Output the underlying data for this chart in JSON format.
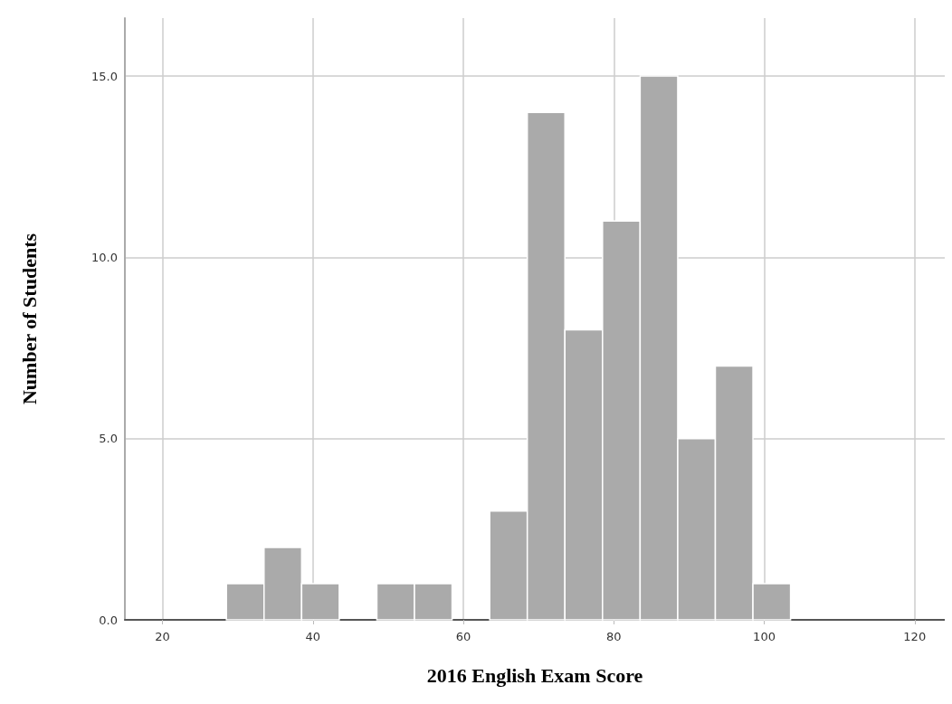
{
  "chart_data": {
    "type": "histogram",
    "xlabel": "2016 English Exam Score",
    "ylabel": "Number of Students",
    "bins": [
      28.5,
      33.5,
      38.5,
      43.5,
      48.5,
      53.5,
      58.5,
      63.5,
      68.5,
      73.5,
      78.5,
      83.5,
      88.5,
      93.5,
      98.5,
      103.5
    ],
    "values": [
      1,
      2,
      1,
      0,
      1,
      1,
      0,
      3,
      14,
      8,
      11,
      15,
      5,
      7,
      1
    ],
    "color": "#aaaaaa",
    "xlim": [
      15,
      124
    ],
    "xticks": [
      20,
      40,
      60,
      80,
      100,
      120
    ],
    "ylim": [
      0,
      16.6
    ],
    "yticks": [
      {
        "value": 0,
        "label": "0.0"
      },
      {
        "value": 5,
        "label": "5.0"
      },
      {
        "value": 10,
        "label": "10.0"
      },
      {
        "value": 15,
        "label": "15.0"
      }
    ],
    "grid": true
  }
}
